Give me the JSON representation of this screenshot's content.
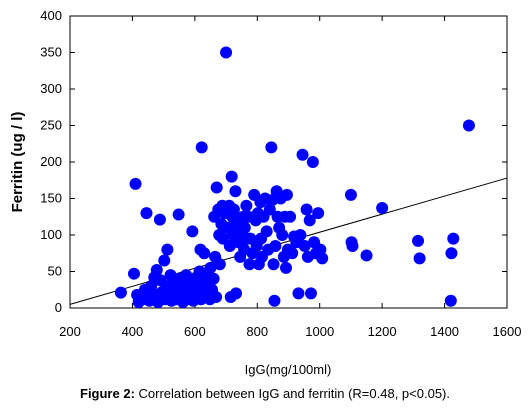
{
  "caption": {
    "label": "Figure 2:",
    "text": "Correlation between IgG and ferritin (R=0.48, p<0.05)."
  },
  "chart_data": {
    "type": "scatter",
    "xlabel": "IgG(mg/100ml)",
    "ylabel": "Ferritin (ug / l)",
    "xlim": [
      200,
      1600
    ],
    "ylim": [
      0,
      400
    ],
    "xticks": [
      200,
      400,
      600,
      800,
      1000,
      1200,
      1400,
      1600
    ],
    "yticks": [
      0,
      50,
      100,
      150,
      200,
      250,
      300,
      350,
      400
    ],
    "grid": false,
    "point_color": "#0000ff",
    "trendline": {
      "x": [
        200,
        1600
      ],
      "y": [
        5,
        178
      ],
      "color": "#000000"
    },
    "points": [
      [
        363,
        21
      ],
      [
        405,
        47
      ],
      [
        410,
        170
      ],
      [
        415,
        18
      ],
      [
        420,
        8
      ],
      [
        430,
        15
      ],
      [
        435,
        12
      ],
      [
        440,
        25
      ],
      [
        445,
        130
      ],
      [
        450,
        18
      ],
      [
        455,
        10
      ],
      [
        460,
        30
      ],
      [
        465,
        20
      ],
      [
        470,
        15
      ],
      [
        470,
        42
      ],
      [
        478,
        52
      ],
      [
        482,
        8
      ],
      [
        488,
        121
      ],
      [
        490,
        38
      ],
      [
        495,
        22
      ],
      [
        500,
        15
      ],
      [
        502,
        65
      ],
      [
        505,
        12
      ],
      [
        510,
        30
      ],
      [
        512,
        80
      ],
      [
        515,
        25
      ],
      [
        520,
        18
      ],
      [
        522,
        45
      ],
      [
        525,
        10
      ],
      [
        530,
        35
      ],
      [
        535,
        20
      ],
      [
        540,
        12
      ],
      [
        542,
        28
      ],
      [
        548,
        128
      ],
      [
        550,
        40
      ],
      [
        555,
        15
      ],
      [
        558,
        25
      ],
      [
        562,
        8
      ],
      [
        565,
        32
      ],
      [
        568,
        18
      ],
      [
        572,
        45
      ],
      [
        575,
        12
      ],
      [
        578,
        22
      ],
      [
        582,
        38
      ],
      [
        585,
        15
      ],
      [
        588,
        28
      ],
      [
        592,
        105
      ],
      [
        595,
        10
      ],
      [
        598,
        35
      ],
      [
        600,
        20
      ],
      [
        605,
        42
      ],
      [
        608,
        15
      ],
      [
        612,
        28
      ],
      [
        615,
        50
      ],
      [
        618,
        80
      ],
      [
        620,
        12
      ],
      [
        622,
        220
      ],
      [
        625,
        35
      ],
      [
        628,
        22
      ],
      [
        630,
        75
      ],
      [
        632,
        45
      ],
      [
        638,
        18
      ],
      [
        642,
        30
      ],
      [
        648,
        12
      ],
      [
        650,
        55
      ],
      [
        655,
        25
      ],
      [
        660,
        40
      ],
      [
        662,
        125
      ],
      [
        665,
        70
      ],
      [
        668,
        15
      ],
      [
        670,
        165
      ],
      [
        675,
        135
      ],
      [
        678,
        100
      ],
      [
        680,
        60
      ],
      [
        685,
        115
      ],
      [
        688,
        140
      ],
      [
        690,
        95
      ],
      [
        695,
        130
      ],
      [
        700,
        350
      ],
      [
        705,
        110
      ],
      [
        710,
        140
      ],
      [
        712,
        85
      ],
      [
        715,
        15
      ],
      [
        718,
        180
      ],
      [
        720,
        125
      ],
      [
        722,
        100
      ],
      [
        725,
        135
      ],
      [
        730,
        160
      ],
      [
        732,
        20
      ],
      [
        735,
        115
      ],
      [
        740,
        90
      ],
      [
        745,
        70
      ],
      [
        750,
        105
      ],
      [
        755,
        125
      ],
      [
        758,
        80
      ],
      [
        760,
        110
      ],
      [
        765,
        140
      ],
      [
        768,
        95
      ],
      [
        772,
        125
      ],
      [
        775,
        60
      ],
      [
        778,
        95
      ],
      [
        785,
        75
      ],
      [
        790,
        155
      ],
      [
        795,
        120
      ],
      [
        798,
        85
      ],
      [
        802,
        130
      ],
      [
        805,
        60
      ],
      [
        810,
        145
      ],
      [
        812,
        95
      ],
      [
        815,
        70
      ],
      [
        820,
        125
      ],
      [
        825,
        150
      ],
      [
        830,
        105
      ],
      [
        835,
        80
      ],
      [
        840,
        135
      ],
      [
        845,
        220
      ],
      [
        848,
        148
      ],
      [
        852,
        60
      ],
      [
        855,
        10
      ],
      [
        858,
        85
      ],
      [
        862,
        160
      ],
      [
        865,
        125
      ],
      [
        870,
        110
      ],
      [
        875,
        150
      ],
      [
        880,
        100
      ],
      [
        885,
        70
      ],
      [
        888,
        125
      ],
      [
        892,
        55
      ],
      [
        895,
        155
      ],
      [
        898,
        80
      ],
      [
        905,
        125
      ],
      [
        912,
        75
      ],
      [
        918,
        98
      ],
      [
        925,
        90
      ],
      [
        932,
        20
      ],
      [
        938,
        100
      ],
      [
        945,
        210
      ],
      [
        952,
        85
      ],
      [
        958,
        135
      ],
      [
        962,
        70
      ],
      [
        968,
        120
      ],
      [
        972,
        20
      ],
      [
        978,
        200
      ],
      [
        982,
        90
      ],
      [
        988,
        75
      ],
      [
        995,
        130
      ],
      [
        1002,
        80
      ],
      [
        1008,
        68
      ],
      [
        1100,
        155
      ],
      [
        1102,
        90
      ],
      [
        1105,
        85
      ],
      [
        1150,
        72
      ],
      [
        1200,
        137
      ],
      [
        1315,
        92
      ],
      [
        1320,
        68
      ],
      [
        1420,
        10
      ],
      [
        1422,
        75
      ],
      [
        1428,
        95
      ],
      [
        1478,
        250
      ]
    ]
  }
}
